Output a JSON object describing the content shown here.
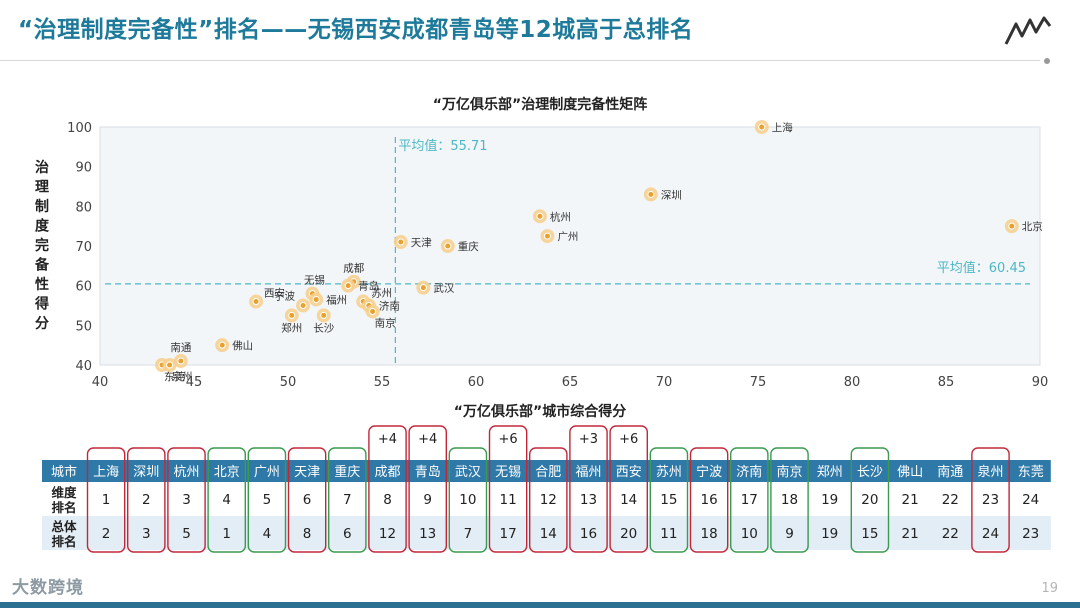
{
  "page": {
    "title": "“治理制度完备性”排名——无锡西安成都青岛等12城高于总排名",
    "page_number": "19",
    "brand": "大数跨境"
  },
  "colors": {
    "accent": "#1e7a9a",
    "header_row": "#2f79a8",
    "box_red": "#c0283a",
    "box_green": "#3a9a4f",
    "avg_line": "#4cb8c4",
    "point": "#e8a02e"
  },
  "chart_data": {
    "type": "scatter",
    "title": "“万亿俱乐部”治理制度完备性矩阵",
    "xlabel": "",
    "ylabel": "治理制度完备性得分",
    "xlim": [
      40,
      90
    ],
    "ylim": [
      40,
      100
    ],
    "xticks": [
      40,
      45,
      50,
      55,
      60,
      65,
      70,
      75,
      80,
      85,
      90
    ],
    "yticks": [
      40,
      50,
      60,
      70,
      80,
      90,
      100
    ],
    "x_avg": 55.71,
    "y_avg": 60.45,
    "x_avg_label": "平均值：55.71",
    "y_avg_label": "平均值：60.45",
    "points": [
      {
        "name": "上海",
        "x": 75.2,
        "y": 100,
        "label_pos": "right"
      },
      {
        "name": "深圳",
        "x": 69.3,
        "y": 83,
        "label_pos": "right"
      },
      {
        "name": "杭州",
        "x": 63.4,
        "y": 77.5,
        "label_pos": "right"
      },
      {
        "name": "广州",
        "x": 63.8,
        "y": 72.5,
        "label_pos": "right"
      },
      {
        "name": "北京",
        "x": 88.5,
        "y": 75,
        "label_pos": "right"
      },
      {
        "name": "天津",
        "x": 56.0,
        "y": 71,
        "label_pos": "right"
      },
      {
        "name": "重庆",
        "x": 58.5,
        "y": 70,
        "label_pos": "right"
      },
      {
        "name": "成都",
        "x": 53.5,
        "y": 61,
        "label_pos": "above"
      },
      {
        "name": "无锡",
        "x": 51.3,
        "y": 58,
        "label_pos": "above-left"
      },
      {
        "name": "青岛",
        "x": 53.2,
        "y": 60,
        "label_pos": "right"
      },
      {
        "name": "宁波",
        "x": 50.8,
        "y": 55,
        "label_pos": "left"
      },
      {
        "name": "福州",
        "x": 51.5,
        "y": 56.5,
        "label_pos": "right"
      },
      {
        "name": "西安",
        "x": 48.3,
        "y": 56,
        "label_pos": "right-up"
      },
      {
        "name": "郑州",
        "x": 50.2,
        "y": 52.5,
        "label_pos": "below"
      },
      {
        "name": "长沙",
        "x": 51.9,
        "y": 52.5,
        "label_pos": "below"
      },
      {
        "name": "苏州",
        "x": 54.0,
        "y": 56,
        "label_pos": "right-up"
      },
      {
        "name": "济南",
        "x": 54.3,
        "y": 55,
        "label_pos": "right"
      },
      {
        "name": "南京",
        "x": 54.5,
        "y": 53.5,
        "label_pos": "below-right"
      },
      {
        "name": "武汉",
        "x": 57.2,
        "y": 59.5,
        "label_pos": "right"
      },
      {
        "name": "佛山",
        "x": 46.5,
        "y": 45,
        "label_pos": "right"
      },
      {
        "name": "南通",
        "x": 44.3,
        "y": 41,
        "label_pos": "above"
      },
      {
        "name": "东莞",
        "x": 43.3,
        "y": 40,
        "label_pos": "below-right"
      },
      {
        "name": "泉州",
        "x": 43.7,
        "y": 40,
        "label_pos": "below-right"
      }
    ]
  },
  "table": {
    "title": "“万亿俱乐部”城市综合得分",
    "row_headers": [
      "城市",
      "维度\n排名",
      "总体\n排名"
    ],
    "cities": [
      {
        "city": "上海",
        "dim": "1",
        "total": "2",
        "box": "red",
        "change": ""
      },
      {
        "city": "深圳",
        "dim": "2",
        "total": "3",
        "box": "red",
        "change": ""
      },
      {
        "city": "杭州",
        "dim": "3",
        "total": "5",
        "box": "red",
        "change": ""
      },
      {
        "city": "北京",
        "dim": "4",
        "total": "1",
        "box": "green",
        "change": ""
      },
      {
        "city": "广州",
        "dim": "5",
        "total": "4",
        "box": "green",
        "change": ""
      },
      {
        "city": "天津",
        "dim": "6",
        "total": "8",
        "box": "red",
        "change": ""
      },
      {
        "city": "重庆",
        "dim": "7",
        "total": "6",
        "box": "green",
        "change": ""
      },
      {
        "city": "成都",
        "dim": "8",
        "total": "12",
        "box": "red",
        "change": "+4"
      },
      {
        "city": "青岛",
        "dim": "9",
        "total": "13",
        "box": "red",
        "change": "+4"
      },
      {
        "city": "武汉",
        "dim": "10",
        "total": "7",
        "box": "green",
        "change": ""
      },
      {
        "city": "无锡",
        "dim": "11",
        "total": "17",
        "box": "red",
        "change": "+6"
      },
      {
        "city": "合肥",
        "dim": "12",
        "total": "14",
        "box": "red",
        "change": ""
      },
      {
        "city": "福州",
        "dim": "13",
        "total": "16",
        "box": "red",
        "change": "+3"
      },
      {
        "city": "西安",
        "dim": "14",
        "total": "20",
        "box": "red",
        "change": "+6"
      },
      {
        "city": "苏州",
        "dim": "15",
        "total": "11",
        "box": "green",
        "change": ""
      },
      {
        "city": "宁波",
        "dim": "16",
        "total": "18",
        "box": "red",
        "change": ""
      },
      {
        "city": "济南",
        "dim": "17",
        "total": "10",
        "box": "green",
        "change": ""
      },
      {
        "city": "南京",
        "dim": "18",
        "total": "9",
        "box": "green",
        "change": ""
      },
      {
        "city": "郑州",
        "dim": "19",
        "total": "19",
        "box": "",
        "change": ""
      },
      {
        "city": "长沙",
        "dim": "20",
        "total": "15",
        "box": "green",
        "change": ""
      },
      {
        "city": "佛山",
        "dim": "21",
        "total": "21",
        "box": "",
        "change": ""
      },
      {
        "city": "南通",
        "dim": "22",
        "total": "22",
        "box": "",
        "change": ""
      },
      {
        "city": "泉州",
        "dim": "23",
        "total": "24",
        "box": "red",
        "change": ""
      },
      {
        "city": "东莞",
        "dim": "24",
        "total": "23",
        "box": "",
        "change": ""
      }
    ]
  }
}
